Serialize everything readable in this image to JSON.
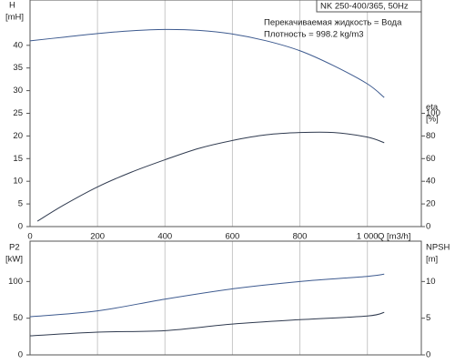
{
  "chart_data": [
    {
      "type": "line",
      "box_title": "NK 250-400/365, 50Hz",
      "annotations": [
        "Перекачиваемая жидкость = Вода",
        "Плотность = 998.2 kg/m3"
      ],
      "ylabel": "H",
      "yunit": "[mH]",
      "y2label": "eta",
      "y2unit": "[%]",
      "xlabel": "Q [m3/h]",
      "xlim": [
        0,
        1160
      ],
      "xticks": [
        0,
        200,
        400,
        600,
        800,
        {
          "value": 1000,
          "label": "1 000"
        }
      ],
      "ylim": [
        0,
        50
      ],
      "yticks": [
        0,
        5,
        10,
        15,
        20,
        25,
        30,
        35,
        40
      ],
      "y2lim": [
        0,
        200
      ],
      "y2ticks": [
        0,
        20,
        40,
        60,
        80,
        100
      ],
      "grid": true,
      "series": [
        {
          "color": "#3d5a8f",
          "x": [
            0,
            100,
            200,
            300,
            400,
            500,
            600,
            700,
            800,
            900,
            1000,
            1050
          ],
          "values": [
            41,
            41.8,
            42.6,
            43.2,
            43.5,
            43.3,
            42.5,
            41,
            38.8,
            35.5,
            31.5,
            28.5
          ]
        },
        {
          "color": "#2f3a4f",
          "axis": "y2",
          "x": [
            22,
            100,
            200,
            300,
            400,
            500,
            600,
            700,
            800,
            900,
            1000,
            1050
          ],
          "values": [
            4.8,
            19,
            35,
            48,
            59,
            69,
            76,
            81,
            83,
            83,
            79,
            74
          ]
        }
      ]
    },
    {
      "type": "line",
      "ylabel": "P2",
      "yunit": "[kW]",
      "y2label": "NPSH",
      "y2unit": "[m]",
      "xlim": [
        0,
        1160
      ],
      "ylim": [
        0,
        155
      ],
      "yticks": [
        0,
        50,
        100
      ],
      "y2lim": [
        0,
        15.5
      ],
      "y2ticks": [
        0,
        5,
        10
      ],
      "grid": true,
      "series": [
        {
          "color": "#3d5a8f",
          "x": [
            0,
            200,
            400,
            600,
            800,
            1000,
            1050
          ],
          "values": [
            52,
            60,
            76,
            90,
            100,
            107,
            110
          ]
        },
        {
          "color": "#2f3a4f",
          "axis": "y2",
          "x": [
            0,
            200,
            400,
            600,
            800,
            1000,
            1050
          ],
          "values": [
            2.6,
            3.1,
            3.3,
            4.2,
            4.8,
            5.3,
            5.8
          ]
        }
      ]
    }
  ]
}
